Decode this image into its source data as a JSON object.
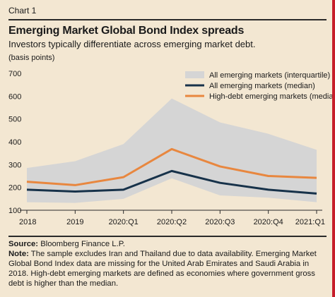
{
  "header": {
    "chart_label": "Chart 1",
    "title": "Emerging Market Global Bond Index spreads",
    "subtitle": "Investors typically differentiate across emerging market debt.",
    "units": "(basis points)"
  },
  "footer": {
    "source_label": "Source:",
    "source_text": " Bloomberg Finance L.P.",
    "note_label": "Note:",
    "note_text": " The sample excludes Iran and Thailand due to data availability. Emerging Market Global Bond Index data are missing for the United Arab Emirates and Saudi Arabia in 2018. High-debt emerging markets are defined as economies where government gross debt is higher than the median."
  },
  "colors": {
    "background": "#f3e7d2",
    "band": "#d5d5d5",
    "median": "#17324a",
    "high_debt": "#e8873f",
    "accent_edge": "#c61d2a"
  },
  "chart_data": {
    "type": "line",
    "x": [
      "2018",
      "2019",
      "2020:Q1",
      "2020:Q2",
      "2020:Q3",
      "2020:Q4",
      "2021:Q1"
    ],
    "yticks": [
      100,
      200,
      300,
      400,
      500,
      600,
      700
    ],
    "ylim": [
      100,
      700
    ],
    "legend_position": "top-right",
    "band": {
      "name": "All emerging markets (interquartile)",
      "low": [
        135,
        132,
        150,
        240,
        165,
        155,
        135
      ],
      "high": [
        285,
        315,
        390,
        590,
        485,
        435,
        365
      ]
    },
    "series": [
      {
        "name": "All emerging markets (median)",
        "color": "#17324a",
        "values": [
          190,
          182,
          190,
          272,
          220,
          190,
          173
        ]
      },
      {
        "name": "High-debt emerging markets (median)",
        "color": "#e8873f",
        "values": [
          225,
          210,
          245,
          368,
          292,
          250,
          242
        ]
      }
    ]
  }
}
